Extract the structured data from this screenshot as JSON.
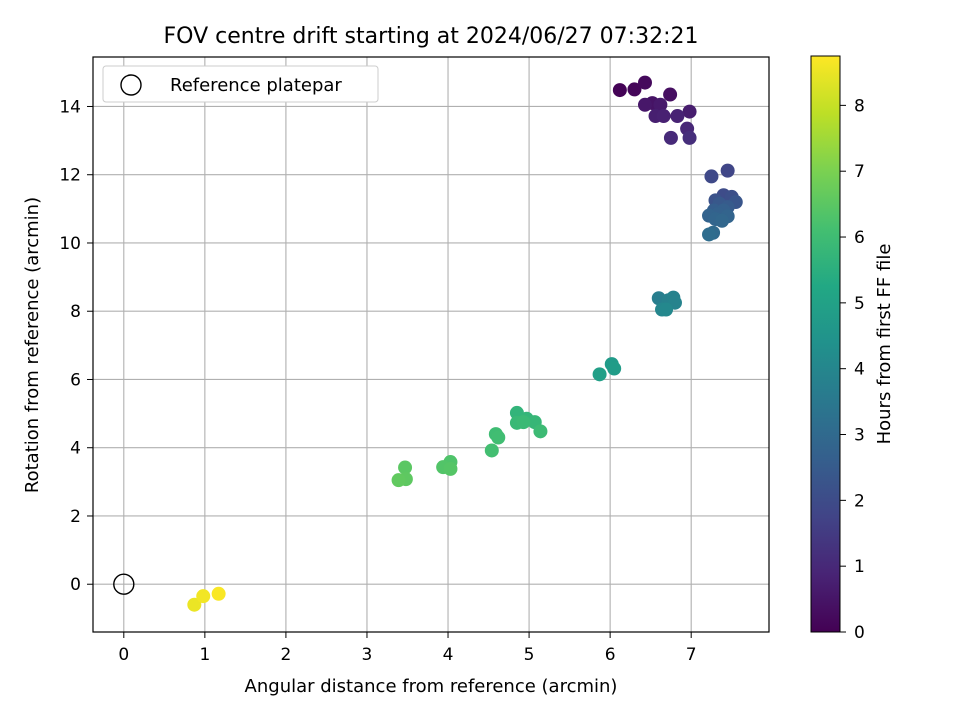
{
  "chart_data": {
    "type": "scatter",
    "title": "FOV centre drift starting at 2024/06/27 07:32:21",
    "xlabel": "Angular distance from reference (arcmin)",
    "ylabel": "Rotation from reference (arcmin)",
    "xlim": [
      -0.38,
      7.96
    ],
    "ylim": [
      -1.4,
      15.45
    ],
    "xticks": [
      0,
      1,
      2,
      3,
      4,
      5,
      6,
      7
    ],
    "yticks": [
      0,
      2,
      4,
      6,
      8,
      10,
      12,
      14
    ],
    "grid": true,
    "legend": {
      "placement": "top-left",
      "entries": [
        "Reference platepar"
      ]
    },
    "reference_point": {
      "x": 0,
      "y": 0
    },
    "colorbar": {
      "label": "Hours from first FF file",
      "range": [
        0,
        8.75
      ],
      "ticks": [
        0,
        1,
        2,
        3,
        4,
        5,
        6,
        7,
        8
      ],
      "colormap": "viridis"
    },
    "points": [
      {
        "x": 6.12,
        "y": 14.48,
        "c": 0.05
      },
      {
        "x": 6.3,
        "y": 14.5,
        "c": 0.12
      },
      {
        "x": 6.43,
        "y": 14.7,
        "c": 0.2
      },
      {
        "x": 6.74,
        "y": 14.35,
        "c": 0.35
      },
      {
        "x": 6.52,
        "y": 14.1,
        "c": 0.45
      },
      {
        "x": 6.43,
        "y": 14.05,
        "c": 0.55
      },
      {
        "x": 6.62,
        "y": 14.05,
        "c": 0.6
      },
      {
        "x": 6.98,
        "y": 13.85,
        "c": 0.7
      },
      {
        "x": 6.56,
        "y": 13.72,
        "c": 0.75
      },
      {
        "x": 6.66,
        "y": 13.72,
        "c": 0.8
      },
      {
        "x": 6.83,
        "y": 13.72,
        "c": 0.85
      },
      {
        "x": 6.95,
        "y": 13.35,
        "c": 0.95
      },
      {
        "x": 6.75,
        "y": 13.08,
        "c": 1.05
      },
      {
        "x": 6.98,
        "y": 13.08,
        "c": 1.15
      },
      {
        "x": 7.45,
        "y": 12.12,
        "c": 1.8
      },
      {
        "x": 7.25,
        "y": 11.95,
        "c": 1.9
      },
      {
        "x": 7.4,
        "y": 11.4,
        "c": 2.0
      },
      {
        "x": 7.5,
        "y": 11.35,
        "c": 2.1
      },
      {
        "x": 7.3,
        "y": 11.25,
        "c": 2.2
      },
      {
        "x": 7.55,
        "y": 11.2,
        "c": 2.3
      },
      {
        "x": 7.35,
        "y": 11.15,
        "c": 2.4
      },
      {
        "x": 7.45,
        "y": 11.05,
        "c": 2.5
      },
      {
        "x": 7.28,
        "y": 10.95,
        "c": 2.6
      },
      {
        "x": 7.4,
        "y": 10.95,
        "c": 2.65
      },
      {
        "x": 7.33,
        "y": 10.85,
        "c": 2.7
      },
      {
        "x": 7.22,
        "y": 10.8,
        "c": 2.75
      },
      {
        "x": 7.45,
        "y": 10.78,
        "c": 2.8
      },
      {
        "x": 7.3,
        "y": 10.7,
        "c": 2.85
      },
      {
        "x": 7.38,
        "y": 10.65,
        "c": 2.9
      },
      {
        "x": 7.27,
        "y": 10.3,
        "c": 3.0
      },
      {
        "x": 7.22,
        "y": 10.25,
        "c": 3.1
      },
      {
        "x": 6.6,
        "y": 8.38,
        "c": 3.7
      },
      {
        "x": 6.72,
        "y": 8.32,
        "c": 3.8
      },
      {
        "x": 6.78,
        "y": 8.4,
        "c": 3.85
      },
      {
        "x": 6.8,
        "y": 8.25,
        "c": 3.9
      },
      {
        "x": 6.64,
        "y": 8.05,
        "c": 4.0
      },
      {
        "x": 6.69,
        "y": 8.05,
        "c": 4.05
      },
      {
        "x": 6.02,
        "y": 6.45,
        "c": 4.75
      },
      {
        "x": 6.05,
        "y": 6.32,
        "c": 4.8
      },
      {
        "x": 5.87,
        "y": 6.15,
        "c": 4.9
      },
      {
        "x": 4.85,
        "y": 5.02,
        "c": 5.7
      },
      {
        "x": 4.97,
        "y": 4.85,
        "c": 5.75
      },
      {
        "x": 5.07,
        "y": 4.75,
        "c": 5.8
      },
      {
        "x": 4.85,
        "y": 4.73,
        "c": 5.85
      },
      {
        "x": 4.93,
        "y": 4.75,
        "c": 5.9
      },
      {
        "x": 5.14,
        "y": 4.48,
        "c": 5.95
      },
      {
        "x": 4.59,
        "y": 4.4,
        "c": 6.0
      },
      {
        "x": 4.62,
        "y": 4.3,
        "c": 6.05
      },
      {
        "x": 4.54,
        "y": 3.92,
        "c": 6.1
      },
      {
        "x": 4.03,
        "y": 3.58,
        "c": 6.3
      },
      {
        "x": 3.94,
        "y": 3.43,
        "c": 6.35
      },
      {
        "x": 4.03,
        "y": 3.38,
        "c": 6.4
      },
      {
        "x": 3.47,
        "y": 3.42,
        "c": 6.5
      },
      {
        "x": 3.48,
        "y": 3.08,
        "c": 6.55
      },
      {
        "x": 3.39,
        "y": 3.05,
        "c": 6.6
      },
      {
        "x": 0.87,
        "y": -0.6,
        "c": 8.5
      },
      {
        "x": 0.98,
        "y": -0.35,
        "c": 8.6
      },
      {
        "x": 1.17,
        "y": -0.28,
        "c": 8.7
      }
    ]
  }
}
